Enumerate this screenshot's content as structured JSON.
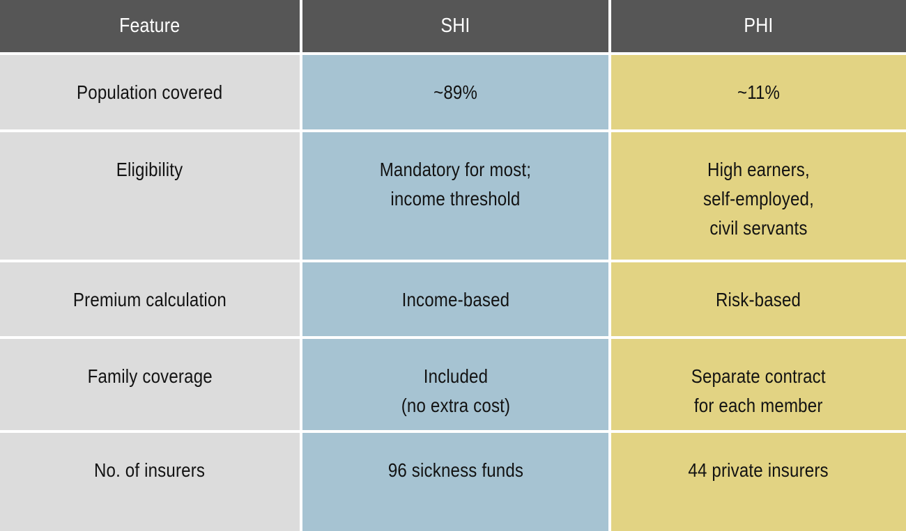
{
  "colors": {
    "header_bg": "#565656",
    "header_text": "#ffffff",
    "feature_column_bg": "#dcdcdc",
    "shi_column_bg": "#a6c3d2",
    "phi_column_bg": "#e2d383",
    "body_text": "#121212",
    "gutter": "#ffffff"
  },
  "table": {
    "headers": [
      "Feature",
      "SHI",
      "PHI"
    ],
    "rows": [
      {
        "cells": [
          "Population covered",
          "~89%",
          "~11%"
        ]
      },
      {
        "cells": [
          "Eligibility",
          [
            "Mandatory for most;",
            "income threshold"
          ],
          [
            "High earners,",
            "self-employed,",
            "civil servants"
          ]
        ]
      },
      {
        "cells": [
          "Premium calculation",
          "Income-based",
          "Risk-based"
        ]
      },
      {
        "cells": [
          "Family coverage",
          [
            "Included",
            "(no extra cost)"
          ],
          [
            "Separate contract",
            "for each member"
          ]
        ]
      },
      {
        "cells": [
          "No. of insurers",
          "96 sickness funds",
          "44 private insurers"
        ]
      }
    ]
  },
  "chart_data": {
    "type": "table",
    "title": "",
    "columns": [
      "Feature",
      "SHI",
      "PHI"
    ],
    "rows": [
      [
        "Population covered",
        "~89%",
        "~11%"
      ],
      [
        "Eligibility",
        "Mandatory for most; income threshold",
        "High earners, self-employed, civil servants"
      ],
      [
        "Premium calculation",
        "Income-based",
        "Risk-based"
      ],
      [
        "Family coverage",
        "Included (no extra cost)",
        "Separate contract for each member"
      ],
      [
        "No. of insurers",
        "96 sickness funds",
        "44 private insurers"
      ]
    ],
    "layout_hints": {
      "header_style": "dark-gray band, white centered text",
      "column_fills": [
        "light-gray",
        "steel-blue",
        "khaki-yellow"
      ],
      "grid": "4px white gutters between all cells",
      "cell_alignment": "horizontally centered, top-aligned body text"
    }
  }
}
